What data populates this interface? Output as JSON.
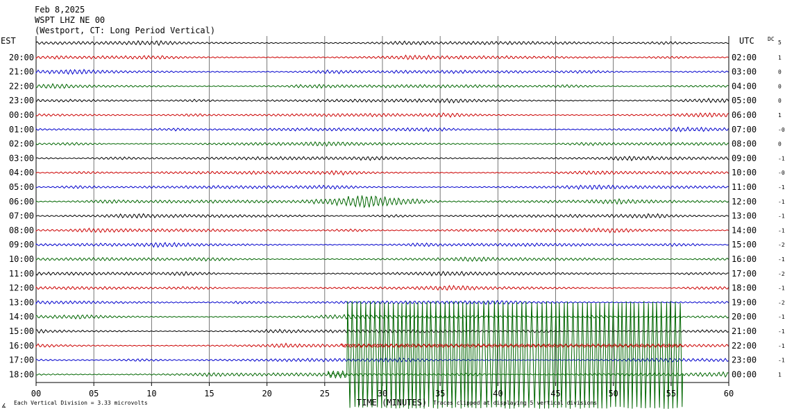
{
  "header": {
    "date": "Feb 8,2025",
    "station": "WSPT LHZ NE 00",
    "location": "(Westport, CT: Long Period Vertical)"
  },
  "left_axis_title": "EST",
  "right_axis_title": "UTC",
  "dc_title": "DC",
  "footer": {
    "scale_mark": "∡",
    "division_note": "Each Vertical Division = 3.33 microvolts",
    "clip_note": "Traces clipped at displaying 5 vertical divisions"
  },
  "colors": {
    "black": "#000000",
    "red": "#cc0000",
    "blue": "#0000cc",
    "green": "#006600",
    "grid": "#555555"
  },
  "chart_data": {
    "type": "line",
    "xlabel": "TIME (MINUTES)",
    "xlim": [
      0,
      60
    ],
    "x_ticks": [
      "00",
      "05",
      "10",
      "15",
      "20",
      "25",
      "30",
      "35",
      "40",
      "45",
      "50",
      "55",
      "60"
    ],
    "row_count": 24,
    "color_cycle": [
      "black",
      "red",
      "blue",
      "green"
    ],
    "est_labels": [
      "",
      "20:00",
      "21:00",
      "22:00",
      "23:00",
      "00:00",
      "01:00",
      "02:00",
      "03:00",
      "04:00",
      "05:00",
      "06:00",
      "07:00",
      "08:00",
      "09:00",
      "10:00",
      "11:00",
      "12:00",
      "13:00",
      "14:00",
      "15:00",
      "16:00",
      "17:00",
      "18:00"
    ],
    "utc_labels": [
      "",
      "02:00",
      "03:00",
      "04:00",
      "05:00",
      "06:00",
      "07:00",
      "08:00",
      "09:00",
      "10:00",
      "11:00",
      "12:00",
      "13:00",
      "14:00",
      "15:00",
      "16:00",
      "17:00",
      "18:00",
      "19:00",
      "20:00",
      "21:00",
      "22:00",
      "23:00",
      "00:00"
    ],
    "dc_values": [
      "5",
      "1",
      "0",
      "0",
      "0",
      "1",
      "-0",
      "0",
      "-1",
      "-0",
      "-1",
      "-1",
      "-1",
      "-1",
      "-2",
      "-1",
      "-2",
      "-1",
      "-2",
      "-1",
      "-1",
      "-1",
      "-1",
      "1"
    ],
    "events": [
      {
        "row": 11,
        "start_min": 22.5,
        "end_min": 35.5,
        "amplitude_divisions": 1.0,
        "label": ""
      },
      {
        "row": 23,
        "start_min": 26.5,
        "end_min": 56.0,
        "amplitude_divisions": 5,
        "clipped": true,
        "label": ""
      }
    ]
  }
}
